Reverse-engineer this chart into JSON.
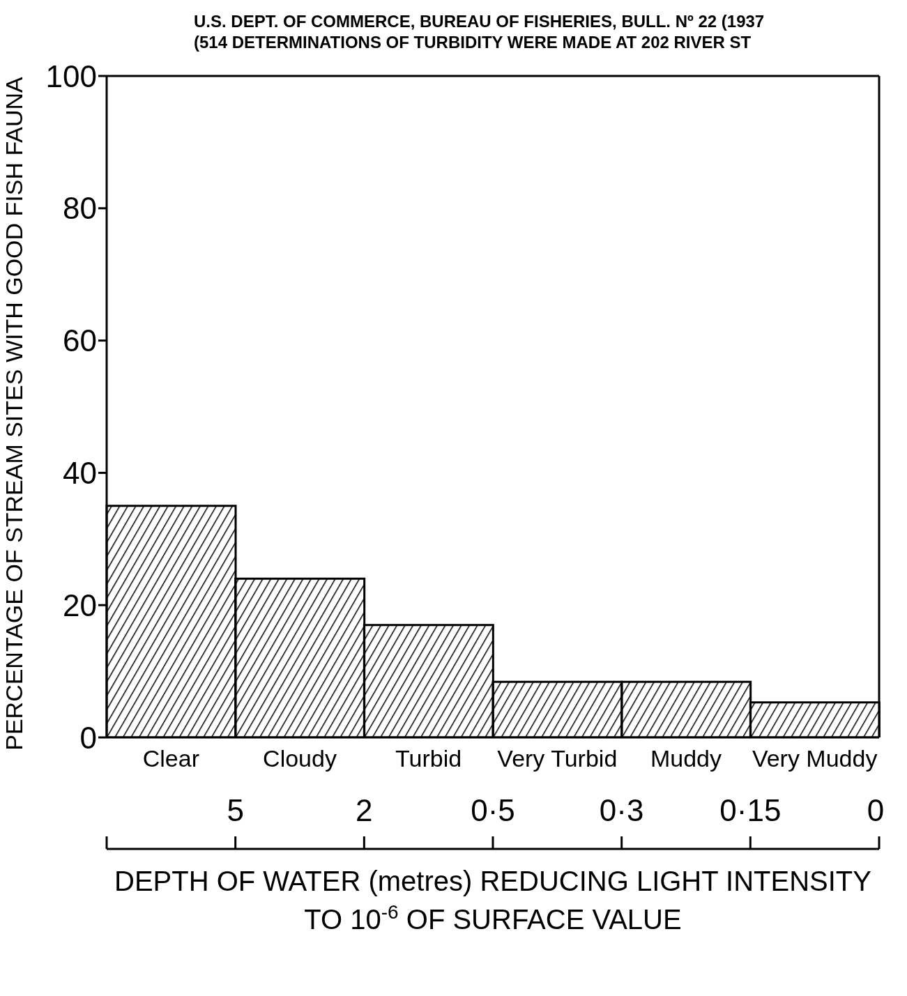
{
  "chart_data": {
    "type": "bar",
    "title": "U.S. DEPT. OF COMMERCE, BUREAU OF FISHERIES, BULL. Nº 22 (1937",
    "subtitle": "(514 DETERMINATIONS OF TURBIDITY WERE MADE AT 202 RIVER ST",
    "annotations": [
      "5",
      "2",
      "0·5",
      "0·3",
      "0·15",
      "0"
    ],
    "ylabel": "PERCENTAGE OF STREAM SITES WITH GOOD FISH FAUNA",
    "x2label": "DEPTH OF WATER (metres) REDUCING LIGHT INTENSITY TO 10$^{-6}$ OF SURFACE VALUE",
    "categories": [
      "Clear",
      "Cloudy",
      "Turbid",
      "Very Turbid",
      "Muddy",
      "Very Muddy"
    ],
    "values": [
      35,
      24,
      17,
      8.4,
      8.4,
      5.3
    ],
    "color": "#000000",
    "ylim": [
      0,
      100
    ],
    "yticks": [
      0,
      20,
      40,
      60,
      80,
      100
    ]
  }
}
